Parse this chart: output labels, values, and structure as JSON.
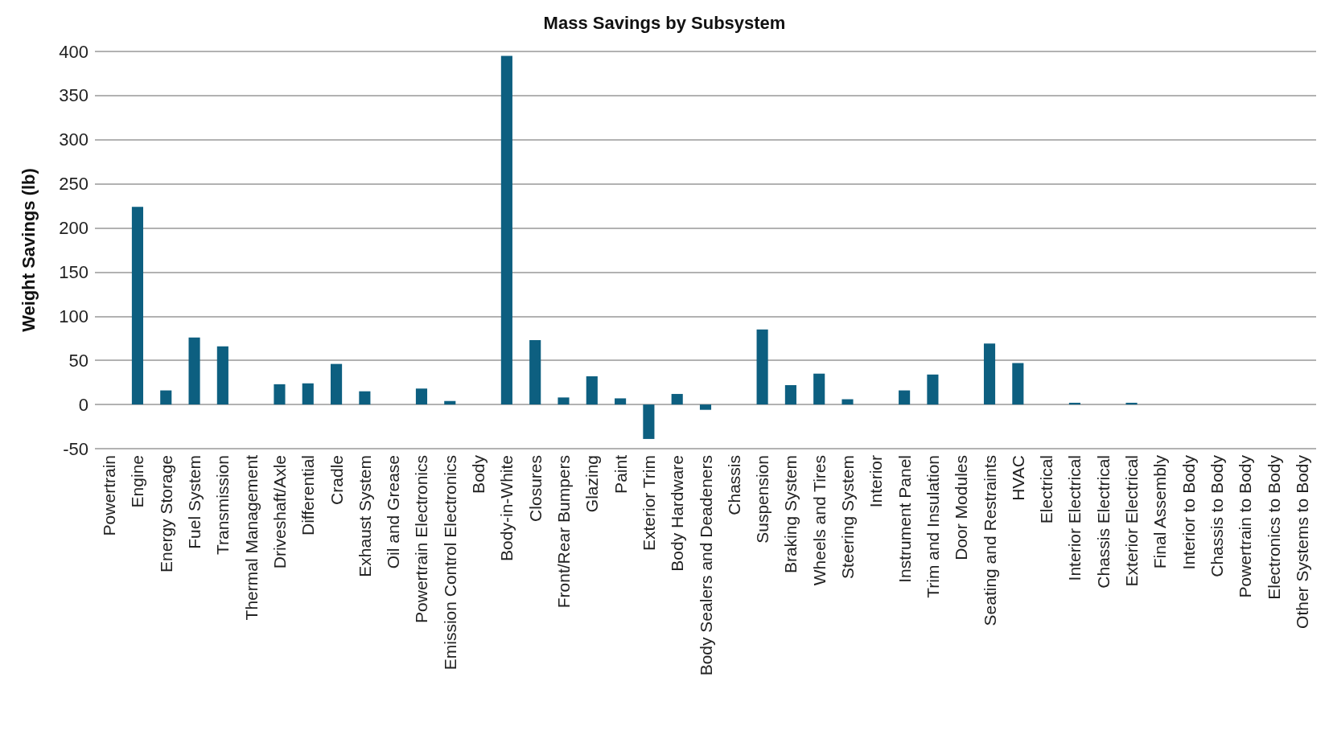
{
  "chart_data": {
    "type": "bar",
    "title": "Mass Savings by Subsystem",
    "ylabel": "Weight Savings (lb)",
    "categories": [
      "Powertrain",
      "Engine",
      "Energy Storage",
      "Fuel System",
      "Transmission",
      "Thermal Management",
      "Driveshaft/Axle",
      "Differential",
      "Cradle",
      "Exhaust System",
      "Oil and Grease",
      "Powertrain Electronics",
      "Emission Control Electronics",
      "Body",
      "Body-in-White",
      "Closures",
      "Front/Rear Bumpers",
      "Glazing",
      "Paint",
      "Exterior Trim",
      "Body Hardware",
      "Body Sealers and Deadeners",
      "Chassis",
      "Suspension",
      "Braking System",
      "Wheels and Tires",
      "Steering System",
      "Interior",
      "Instrument Panel",
      "Trim and Insulation",
      "Door Modules",
      "Seating and Restraints",
      "HVAC",
      "Electrical",
      "Interior Electrical",
      "Chassis Electrical",
      "Exterior Electrical",
      "Final Assembly",
      "Interior to Body",
      "Chassis to Body",
      "Powertrain to Body",
      "Electronics to Body",
      "Other Systems to Body"
    ],
    "values": [
      0,
      224,
      16,
      76,
      66,
      0,
      23,
      24,
      46,
      15,
      0,
      18,
      4,
      0,
      395,
      73,
      8,
      32,
      7,
      -39,
      12,
      -6,
      0,
      85,
      22,
      35,
      6,
      0,
      16,
      34,
      0,
      69,
      47,
      0,
      2,
      0,
      2,
      0,
      0,
      0,
      0,
      0,
      0
    ],
    "color": "#0d5f80",
    "ylim": [
      -50,
      400
    ],
    "yticks": [
      -50,
      0,
      50,
      100,
      150,
      200,
      250,
      300,
      350,
      400
    ],
    "grid": "y"
  }
}
